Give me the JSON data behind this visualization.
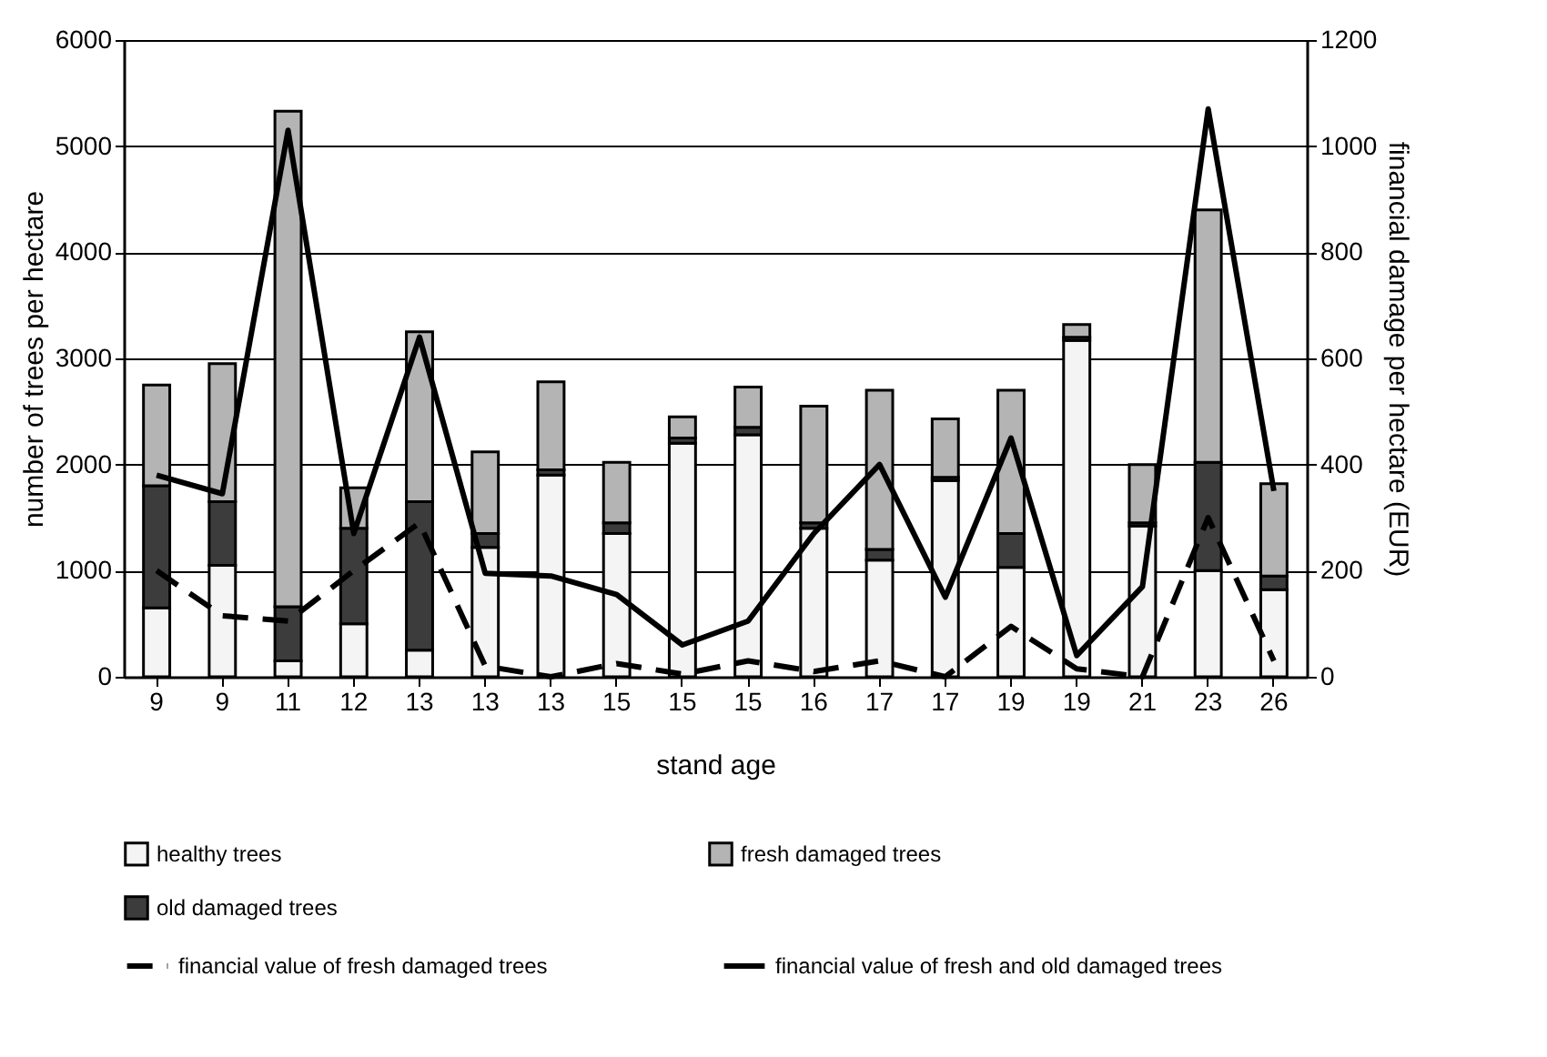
{
  "chart_data": {
    "type": "bar",
    "stacked": true,
    "xlabel": "stand age",
    "ylabel": "number of trees per hectare",
    "y2label": "financial damage per hectare (EUR)",
    "categories": [
      "9",
      "9",
      "11",
      "12",
      "13",
      "13",
      "13",
      "15",
      "15",
      "15",
      "16",
      "17",
      "17",
      "19",
      "19",
      "21",
      "23",
      "26"
    ],
    "ylim": [
      0,
      6000
    ],
    "yticks": [
      0,
      1000,
      2000,
      3000,
      4000,
      5000,
      6000
    ],
    "y2lim": [
      0,
      1200
    ],
    "y2ticks": [
      0,
      200,
      400,
      600,
      800,
      1000,
      1200
    ],
    "grid": "y",
    "legend": "bottom",
    "marker": "none",
    "series": [
      {
        "name": "healthy trees",
        "color": "#f4f4f4",
        "values": [
          650,
          1050,
          150,
          500,
          250,
          1220,
          1900,
          1350,
          2200,
          2280,
          1400,
          1100,
          1850,
          1030,
          3170,
          1420,
          1000,
          820
        ]
      },
      {
        "name": "old damaged trees",
        "color": "#3c3c3c",
        "values": [
          1150,
          600,
          510,
          900,
          1400,
          130,
          50,
          100,
          50,
          70,
          50,
          100,
          30,
          320,
          30,
          30,
          1020,
          130
        ]
      },
      {
        "name": "fresh damaged trees",
        "color": "#b4b4b4",
        "values": [
          950,
          1300,
          4670,
          380,
          1600,
          770,
          830,
          570,
          200,
          380,
          1100,
          1500,
          550,
          1350,
          120,
          550,
          2380,
          870
        ]
      },
      {
        "name": "financial value of fresh damaged trees",
        "type": "line",
        "axis": "y2",
        "line_style": "dashed",
        "color": "#000000",
        "values": [
          200,
          115,
          105,
          200,
          290,
          20,
          0,
          25,
          5,
          30,
          10,
          30,
          0,
          95,
          15,
          0,
          300,
          30
        ]
      },
      {
        "name": "financial value of fresh and old damaged trees",
        "type": "line",
        "axis": "y2",
        "line_style": "solid",
        "color": "#000000",
        "values": [
          380,
          345,
          1030,
          270,
          640,
          195,
          190,
          155,
          60,
          105,
          270,
          400,
          150,
          450,
          40,
          170,
          1070,
          350
        ]
      }
    ]
  }
}
